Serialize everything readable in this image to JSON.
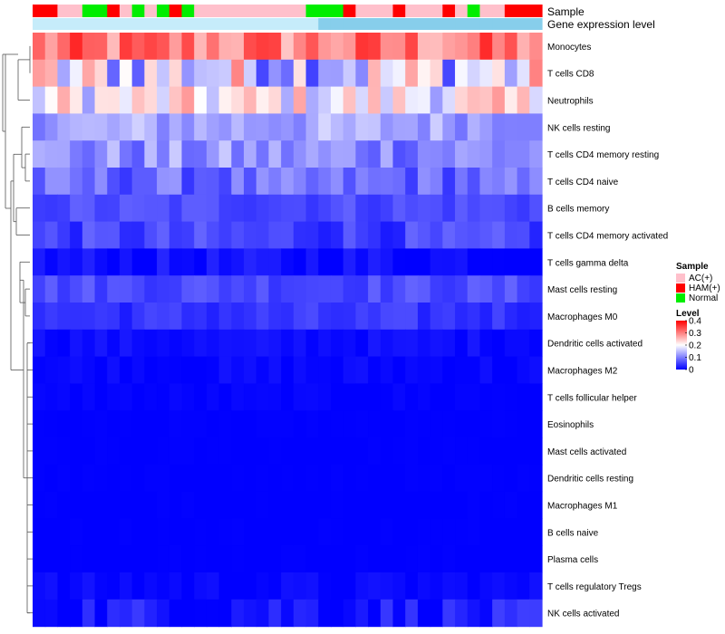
{
  "chart_data": {
    "type": "heatmap",
    "title": "",
    "annotation_labels": [
      "Sample",
      "Gene expression level"
    ],
    "sample_groups": [
      "AC(+)",
      "HAM(+)",
      "Normal"
    ],
    "sample_annotation": [
      1,
      1,
      0,
      0,
      2,
      2,
      1,
      0,
      2,
      0,
      2,
      1,
      2,
      0,
      0,
      0,
      0,
      0,
      0,
      0,
      0,
      0,
      2,
      2,
      2,
      1,
      0,
      0,
      0,
      1,
      0,
      0,
      0,
      1,
      0,
      2,
      0,
      0,
      1,
      1,
      1
    ],
    "legend": {
      "sample_title": "Sample",
      "level_title": "Level",
      "level_ticks": [
        "0.4",
        "0.3",
        "0.2",
        "0.1",
        "0"
      ]
    },
    "color_scale": {
      "min": 0,
      "mid": 0.2,
      "max": 0.4,
      "low": "#0000ff",
      "midcolor": "#ffffff",
      "high": "#ff0000"
    },
    "group_colors": {
      "AC(+)": "#ffc0cb",
      "HAM(+)": "#ff0000",
      "Normal": "#00ee00"
    },
    "expression_bar_colors": [
      "#87ceeb",
      "#c6ecfa"
    ],
    "rows": [
      "Monocytes",
      "T cells CD8",
      "Neutrophils",
      "NK cells resting",
      "T cells CD4 memory resting",
      "T cells CD4 naive",
      "B cells memory",
      "T cells CD4 memory activated",
      "T cells gamma delta",
      "Mast cells resting",
      "Macrophages M0",
      "Dendritic cells activated",
      "Macrophages M2",
      "T cells follicular helper",
      "Eosinophils",
      "Mast cells activated",
      "Dendritic cells resting",
      "Macrophages M1",
      "B cells naive",
      "Plasma cells",
      "T cells regulatory  Tregs",
      "NK cells activated"
    ],
    "n_columns": 41,
    "row_profiles": [
      {
        "base": 0.3,
        "spread": 0.07
      },
      {
        "base": 0.18,
        "spread": 0.13
      },
      {
        "base": 0.2,
        "spread": 0.08
      },
      {
        "base": 0.13,
        "spread": 0.04
      },
      {
        "base": 0.11,
        "spread": 0.05
      },
      {
        "base": 0.08,
        "spread": 0.04
      },
      {
        "base": 0.06,
        "spread": 0.02
      },
      {
        "base": 0.05,
        "spread": 0.03
      },
      {
        "base": 0.01,
        "spread": 0.02
      },
      {
        "base": 0.06,
        "spread": 0.02
      },
      {
        "base": 0.04,
        "spread": 0.02
      },
      {
        "base": 0.01,
        "spread": 0.01
      },
      {
        "base": 0.005,
        "spread": 0.01
      },
      {
        "base": 0.002,
        "spread": 0.005
      },
      {
        "base": 0.0,
        "spread": 0.002
      },
      {
        "base": 0.0,
        "spread": 0.002
      },
      {
        "base": 0.0,
        "spread": 0.002
      },
      {
        "base": 0.0,
        "spread": 0.002
      },
      {
        "base": 0.0,
        "spread": 0.002
      },
      {
        "base": 0.0,
        "spread": 0.002
      },
      {
        "base": 0.005,
        "spread": 0.01
      },
      {
        "base": 0.02,
        "spread": 0.03
      }
    ]
  }
}
